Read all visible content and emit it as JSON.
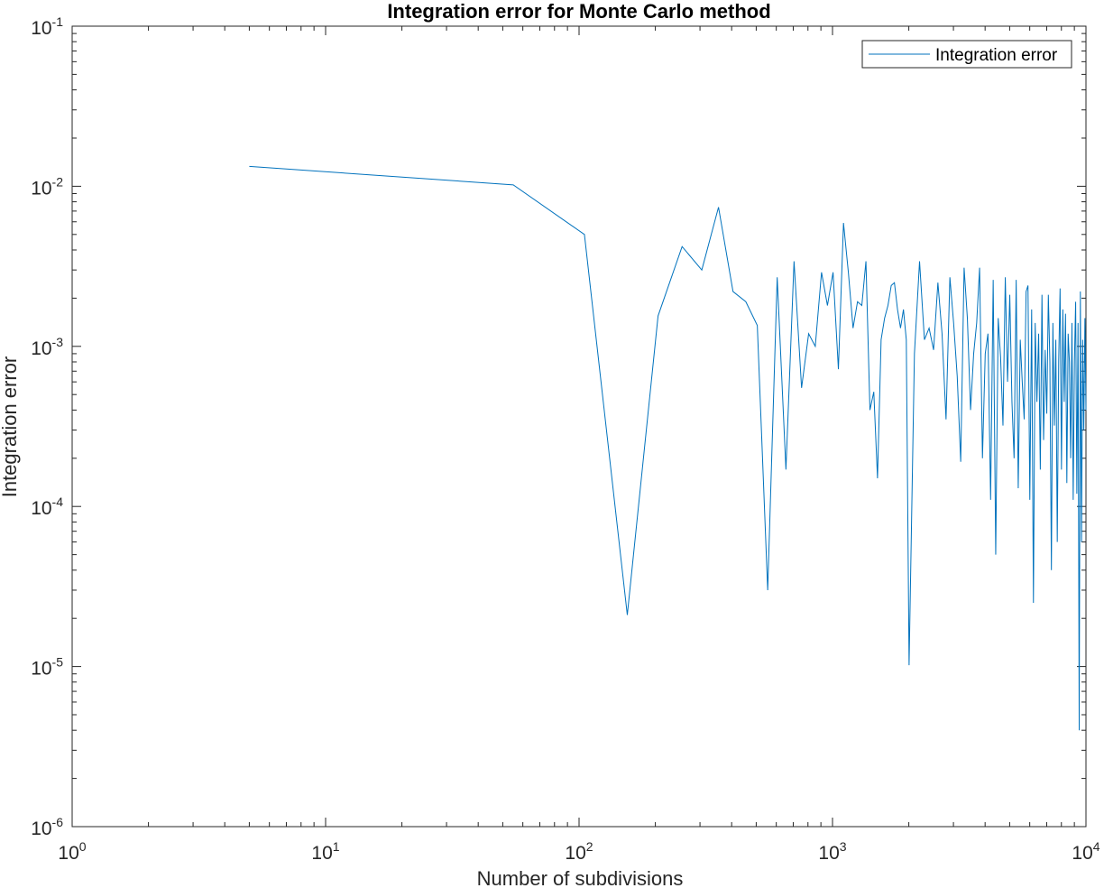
{
  "chart_data": {
    "type": "line",
    "title": "Integration error for Monte Carlo method",
    "xlabel": "Number of subdivisions",
    "ylabel": "Integration error",
    "xscale": "log",
    "yscale": "log",
    "xlim": [
      1,
      10000
    ],
    "ylim": [
      1e-06,
      0.1
    ],
    "grid": false,
    "legend_position": "top-right",
    "x_ticks": [
      {
        "base": "10",
        "exp": "0",
        "value": 1
      },
      {
        "base": "10",
        "exp": "1",
        "value": 10
      },
      {
        "base": "10",
        "exp": "2",
        "value": 100
      },
      {
        "base": "10",
        "exp": "3",
        "value": 1000
      },
      {
        "base": "10",
        "exp": "4",
        "value": 10000
      }
    ],
    "y_ticks": [
      {
        "base": "10",
        "exp": "-6",
        "value": 1e-06
      },
      {
        "base": "10",
        "exp": "-5",
        "value": 1e-05
      },
      {
        "base": "10",
        "exp": "-4",
        "value": 0.0001
      },
      {
        "base": "10",
        "exp": "-3",
        "value": 0.001
      },
      {
        "base": "10",
        "exp": "-2",
        "value": 0.01
      },
      {
        "base": "10",
        "exp": "-1",
        "value": 0.1
      }
    ],
    "series": [
      {
        "name": "Integration error",
        "color": "#0072bd",
        "x": [
          5,
          55,
          105,
          155,
          205,
          255,
          305,
          355,
          405,
          455,
          505,
          555,
          605,
          655,
          705,
          755,
          805,
          855,
          905,
          955,
          1005,
          1055,
          1105,
          1155,
          1205,
          1255,
          1305,
          1355,
          1405,
          1455,
          1505,
          1555,
          1605,
          1655,
          1705,
          1755,
          1805,
          1855,
          1905,
          1955,
          2005,
          2105,
          2205,
          2305,
          2405,
          2505,
          2605,
          2705,
          2805,
          2905,
          3005,
          3105,
          3205,
          3305,
          3405,
          3505,
          3605,
          3705,
          3805,
          3905,
          4005,
          4105,
          4205,
          4305,
          4405,
          4505,
          4605,
          4705,
          4805,
          4905,
          5005,
          5105,
          5205,
          5305,
          5405,
          5505,
          5605,
          5705,
          5805,
          5905,
          6005,
          6105,
          6205,
          6305,
          6405,
          6505,
          6605,
          6705,
          6805,
          6905,
          7005,
          7105,
          7205,
          7305,
          7405,
          7505,
          7605,
          7705,
          7805,
          7905,
          8005,
          8105,
          8205,
          8305,
          8405,
          8505,
          8605,
          8705,
          8805,
          8905,
          9005,
          9105,
          9205,
          9305,
          9405,
          9505,
          9605,
          9705,
          9805,
          9905,
          10000
        ],
        "y": [
          0.0133,
          0.0102,
          0.005,
          2.1e-05,
          0.00155,
          0.0042,
          0.003,
          0.0074,
          0.0022,
          0.0019,
          0.00135,
          3e-05,
          0.0027,
          0.00017,
          0.0034,
          0.00055,
          0.0012,
          0.001,
          0.0029,
          0.0018,
          0.0029,
          0.00072,
          0.0059,
          0.0029,
          0.0013,
          0.0019,
          0.0018,
          0.0034,
          0.0004,
          0.00052,
          0.00015,
          0.0011,
          0.0015,
          0.0018,
          0.0024,
          0.0025,
          0.0017,
          0.0013,
          0.0017,
          0.0011,
          1.02e-05,
          0.0009,
          0.0034,
          0.0011,
          0.0013,
          0.00095,
          0.0025,
          0.0012,
          0.00035,
          0.0027,
          0.0014,
          0.00065,
          0.00019,
          0.0031,
          0.0015,
          0.0004,
          0.0009,
          0.0014,
          0.0031,
          0.0002,
          0.0009,
          0.0012,
          0.00011,
          0.0026,
          5e-05,
          0.0015,
          0.00085,
          0.00032,
          0.0027,
          0.0006,
          0.0021,
          0.00045,
          0.0002,
          0.0026,
          0.00013,
          0.0011,
          0.0006,
          0.00035,
          0.0022,
          0.0024,
          0.00011,
          0.0017,
          2.5e-05,
          0.0014,
          0.00045,
          0.0012,
          0.00017,
          0.0021,
          0.00026,
          0.00095,
          0.00038,
          0.0021,
          0.0008,
          4e-05,
          0.0014,
          0.00032,
          0.0011,
          6e-05,
          0.0008,
          0.0023,
          0.00017,
          0.0017,
          0.00045,
          0.0016,
          0.00014,
          0.0012,
          0.0008,
          0.0002,
          0.0014,
          0.00011,
          0.0008,
          0.0019,
          0.00012,
          0.0014,
          4e-06,
          0.0022,
          6e-05,
          0.0011,
          0.0003,
          0.0015,
          0.0004
        ]
      }
    ]
  }
}
